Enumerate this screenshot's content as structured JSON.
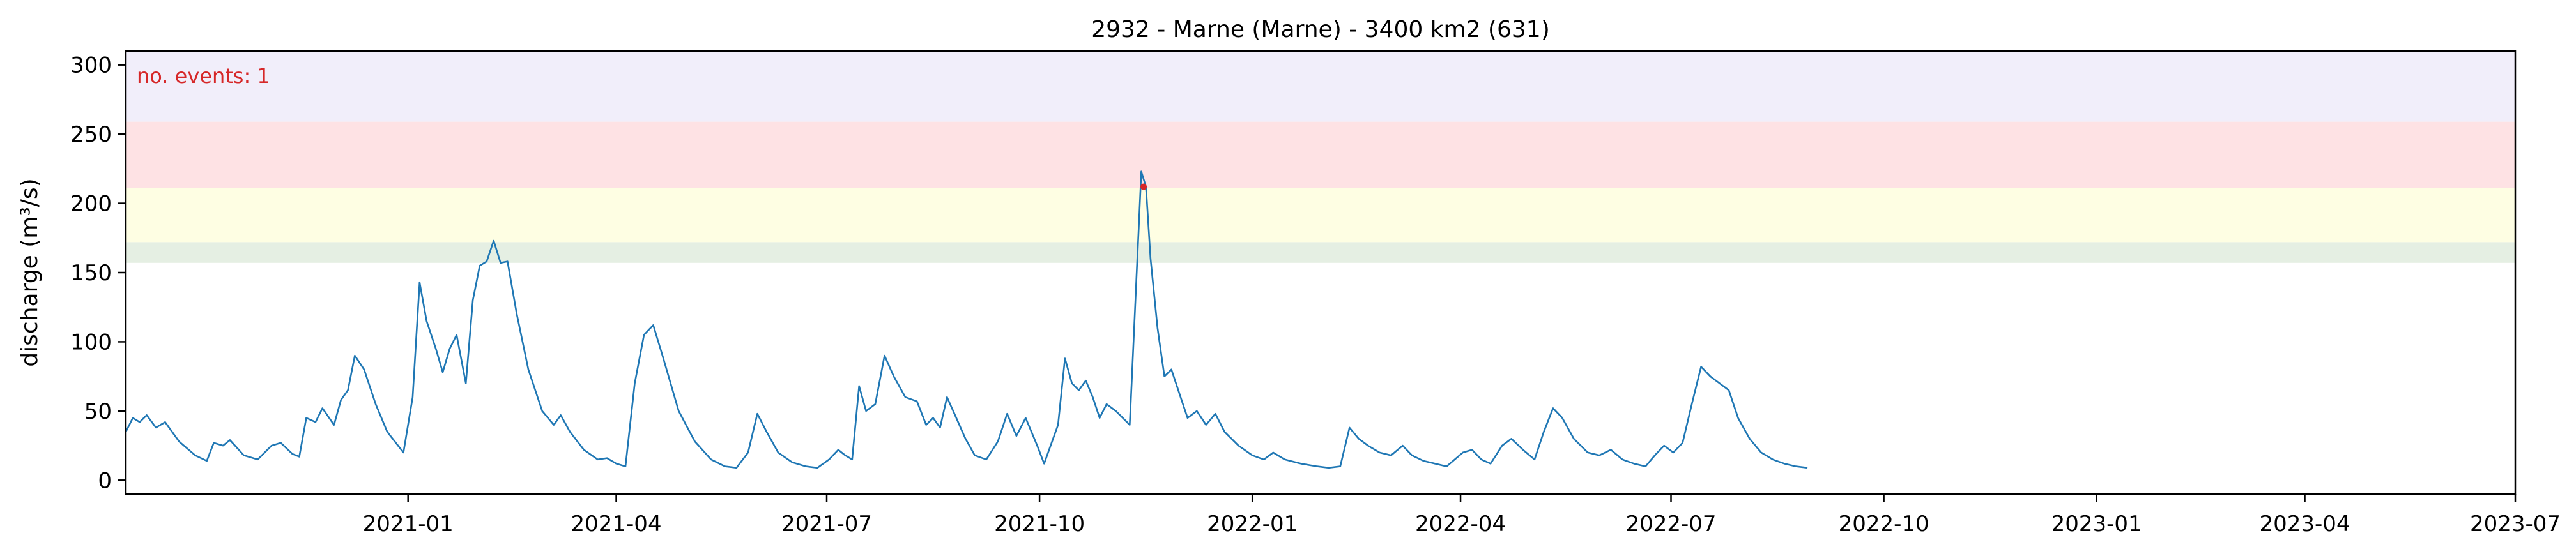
{
  "chart_data": {
    "type": "line",
    "title": "2932 - Marne (Marne) - 3400 km2 (631)",
    "xlabel": "",
    "ylabel": "discharge (m³/s)",
    "xlim": [
      "2020-09-01",
      "2023-07-01"
    ],
    "ylim": [
      -10,
      310
    ],
    "x_ticks": [
      "2021-01",
      "2021-04",
      "2021-07",
      "2021-10",
      "2022-01",
      "2022-04",
      "2022-07",
      "2022-10",
      "2023-01",
      "2023-04",
      "2023-07"
    ],
    "x_tick_dates": [
      "2021-01-01",
      "2021-04-01",
      "2021-07-01",
      "2021-10-01",
      "2022-01-01",
      "2022-04-01",
      "2022-07-01",
      "2022-10-01",
      "2023-01-01",
      "2023-04-01",
      "2023-07-01"
    ],
    "y_ticks": [
      "0",
      "50",
      "100",
      "150",
      "200",
      "250",
      "300"
    ],
    "y_tick_values": [
      0,
      50,
      100,
      150,
      200,
      250,
      300
    ],
    "grid": false,
    "threshold_bands": [
      {
        "from": 157,
        "to": 172,
        "color": "#e5efe3"
      },
      {
        "from": 172,
        "to": 211,
        "color": "#fefee3"
      },
      {
        "from": 211,
        "to": 259,
        "color": "#fee2e4"
      },
      {
        "from": 259,
        "to": 310,
        "color": "#f1eefa"
      }
    ],
    "series": [
      {
        "color": "#1f77b4",
        "points": [
          [
            "2020-09-01",
            35
          ],
          [
            "2020-09-04",
            45
          ],
          [
            "2020-09-07",
            42
          ],
          [
            "2020-09-10",
            47
          ],
          [
            "2020-09-14",
            38
          ],
          [
            "2020-09-18",
            42
          ],
          [
            "2020-09-24",
            28
          ],
          [
            "2020-10-01",
            18
          ],
          [
            "2020-10-06",
            14
          ],
          [
            "2020-10-09",
            27
          ],
          [
            "2020-10-13",
            25
          ],
          [
            "2020-10-16",
            29
          ],
          [
            "2020-10-22",
            18
          ],
          [
            "2020-10-28",
            15
          ],
          [
            "2020-11-03",
            25
          ],
          [
            "2020-11-07",
            27
          ],
          [
            "2020-11-12",
            19
          ],
          [
            "2020-11-15",
            17
          ],
          [
            "2020-11-18",
            45
          ],
          [
            "2020-11-22",
            42
          ],
          [
            "2020-11-25",
            52
          ],
          [
            "2020-11-30",
            40
          ],
          [
            "2020-12-03",
            58
          ],
          [
            "2020-12-06",
            65
          ],
          [
            "2020-12-09",
            90
          ],
          [
            "2020-12-13",
            80
          ],
          [
            "2020-12-18",
            55
          ],
          [
            "2020-12-23",
            35
          ],
          [
            "2020-12-30",
            20
          ],
          [
            "2021-01-03",
            60
          ],
          [
            "2021-01-06",
            143
          ],
          [
            "2021-01-09",
            115
          ],
          [
            "2021-01-13",
            95
          ],
          [
            "2021-01-16",
            78
          ],
          [
            "2021-01-19",
            95
          ],
          [
            "2021-01-22",
            105
          ],
          [
            "2021-01-26",
            70
          ],
          [
            "2021-01-29",
            130
          ],
          [
            "2021-02-01",
            155
          ],
          [
            "2021-02-04",
            158
          ],
          [
            "2021-02-07",
            173
          ],
          [
            "2021-02-10",
            157
          ],
          [
            "2021-02-13",
            158
          ],
          [
            "2021-02-17",
            120
          ],
          [
            "2021-02-22",
            80
          ],
          [
            "2021-02-28",
            50
          ],
          [
            "2021-03-05",
            40
          ],
          [
            "2021-03-08",
            47
          ],
          [
            "2021-03-12",
            35
          ],
          [
            "2021-03-18",
            22
          ],
          [
            "2021-03-24",
            15
          ],
          [
            "2021-03-28",
            16
          ],
          [
            "2021-04-01",
            12
          ],
          [
            "2021-04-05",
            10
          ],
          [
            "2021-04-09",
            70
          ],
          [
            "2021-04-13",
            105
          ],
          [
            "2021-04-17",
            112
          ],
          [
            "2021-04-21",
            90
          ],
          [
            "2021-04-28",
            50
          ],
          [
            "2021-05-05",
            28
          ],
          [
            "2021-05-12",
            15
          ],
          [
            "2021-05-18",
            10
          ],
          [
            "2021-05-23",
            9
          ],
          [
            "2021-05-28",
            20
          ],
          [
            "2021-06-01",
            48
          ],
          [
            "2021-06-05",
            35
          ],
          [
            "2021-06-10",
            20
          ],
          [
            "2021-06-16",
            13
          ],
          [
            "2021-06-22",
            10
          ],
          [
            "2021-06-27",
            9
          ],
          [
            "2021-07-02",
            15
          ],
          [
            "2021-07-06",
            22
          ],
          [
            "2021-07-09",
            18
          ],
          [
            "2021-07-12",
            15
          ],
          [
            "2021-07-15",
            68
          ],
          [
            "2021-07-18",
            50
          ],
          [
            "2021-07-22",
            55
          ],
          [
            "2021-07-26",
            90
          ],
          [
            "2021-07-30",
            75
          ],
          [
            "2021-08-04",
            60
          ],
          [
            "2021-08-09",
            57
          ],
          [
            "2021-08-13",
            40
          ],
          [
            "2021-08-16",
            45
          ],
          [
            "2021-08-19",
            38
          ],
          [
            "2021-08-22",
            60
          ],
          [
            "2021-08-26",
            45
          ],
          [
            "2021-08-30",
            30
          ],
          [
            "2021-09-03",
            18
          ],
          [
            "2021-09-08",
            15
          ],
          [
            "2021-09-13",
            28
          ],
          [
            "2021-09-17",
            48
          ],
          [
            "2021-09-21",
            32
          ],
          [
            "2021-09-25",
            45
          ],
          [
            "2021-09-30",
            25
          ],
          [
            "2021-10-03",
            12
          ],
          [
            "2021-10-09",
            40
          ],
          [
            "2021-10-12",
            88
          ],
          [
            "2021-10-15",
            70
          ],
          [
            "2021-10-18",
            65
          ],
          [
            "2021-10-21",
            72
          ],
          [
            "2021-10-24",
            60
          ],
          [
            "2021-10-27",
            45
          ],
          [
            "2021-10-30",
            55
          ],
          [
            "2021-11-03",
            50
          ],
          [
            "2021-11-06",
            45
          ],
          [
            "2021-11-09",
            40
          ],
          [
            "2021-11-12",
            150
          ],
          [
            "2021-11-14",
            223
          ],
          [
            "2021-11-16",
            212
          ],
          [
            "2021-11-18",
            160
          ],
          [
            "2021-11-21",
            110
          ],
          [
            "2021-11-24",
            75
          ],
          [
            "2021-11-27",
            80
          ],
          [
            "2021-11-30",
            65
          ],
          [
            "2021-12-04",
            45
          ],
          [
            "2021-12-08",
            50
          ],
          [
            "2021-12-12",
            40
          ],
          [
            "2021-12-16",
            48
          ],
          [
            "2021-12-20",
            35
          ],
          [
            "2021-12-26",
            25
          ],
          [
            "2022-01-01",
            18
          ],
          [
            "2022-01-06",
            15
          ],
          [
            "2022-01-10",
            20
          ],
          [
            "2022-01-15",
            15
          ],
          [
            "2022-01-22",
            12
          ],
          [
            "2022-01-29",
            10
          ],
          [
            "2022-02-03",
            9
          ],
          [
            "2022-02-08",
            10
          ],
          [
            "2022-02-12",
            38
          ],
          [
            "2022-02-16",
            30
          ],
          [
            "2022-02-20",
            25
          ],
          [
            "2022-02-25",
            20
          ],
          [
            "2022-03-02",
            18
          ],
          [
            "2022-03-07",
            25
          ],
          [
            "2022-03-11",
            18
          ],
          [
            "2022-03-16",
            14
          ],
          [
            "2022-03-21",
            12
          ],
          [
            "2022-03-26",
            10
          ],
          [
            "2022-04-02",
            20
          ],
          [
            "2022-04-06",
            22
          ],
          [
            "2022-04-10",
            15
          ],
          [
            "2022-04-14",
            12
          ],
          [
            "2022-04-19",
            25
          ],
          [
            "2022-04-23",
            30
          ],
          [
            "2022-04-28",
            22
          ],
          [
            "2022-05-03",
            15
          ],
          [
            "2022-05-07",
            35
          ],
          [
            "2022-05-11",
            52
          ],
          [
            "2022-05-15",
            45
          ],
          [
            "2022-05-20",
            30
          ],
          [
            "2022-05-26",
            20
          ],
          [
            "2022-05-31",
            18
          ],
          [
            "2022-06-05",
            22
          ],
          [
            "2022-06-10",
            15
          ],
          [
            "2022-06-15",
            12
          ],
          [
            "2022-06-20",
            10
          ],
          [
            "2022-06-24",
            18
          ],
          [
            "2022-06-28",
            25
          ],
          [
            "2022-07-02",
            20
          ],
          [
            "2022-07-06",
            27
          ],
          [
            "2022-07-10",
            55
          ],
          [
            "2022-07-14",
            82
          ],
          [
            "2022-07-18",
            75
          ],
          [
            "2022-07-22",
            70
          ],
          [
            "2022-07-26",
            65
          ],
          [
            "2022-07-30",
            45
          ],
          [
            "2022-08-04",
            30
          ],
          [
            "2022-08-09",
            20
          ],
          [
            "2022-08-14",
            15
          ],
          [
            "2022-08-19",
            12
          ],
          [
            "2022-08-24",
            10
          ],
          [
            "2022-08-29",
            9
          ]
        ]
      }
    ],
    "annotation": {
      "text": "no. events: 1",
      "color": "#d62728"
    },
    "events": [
      {
        "x": "2021-11-15",
        "y": 212,
        "color": "#d62728"
      }
    ]
  }
}
